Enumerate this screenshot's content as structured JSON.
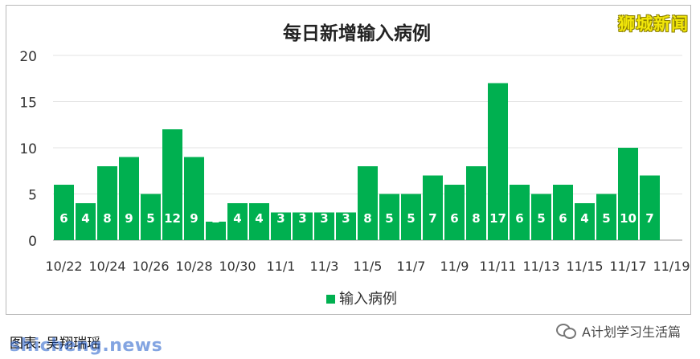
{
  "brand": {
    "text": "狮城新闻"
  },
  "footer": {
    "caption": "图表: 吴翔瑞瑶",
    "watermark": "shicheng.news",
    "wechat_account": "A计划学习生活篇"
  },
  "chart_data": {
    "type": "bar",
    "title": "每日新增输入病例",
    "xlabel": "",
    "ylabel": "",
    "ylim": [
      0,
      20
    ],
    "yticks": [
      0,
      5,
      10,
      15,
      20
    ],
    "grid": true,
    "legend": {
      "position": "bottom",
      "label": "输入病例"
    },
    "categories": [
      "10/22",
      "10/23",
      "10/24",
      "10/25",
      "10/26",
      "10/27",
      "10/28",
      "10/29",
      "10/30",
      "10/31",
      "11/1",
      "11/2",
      "11/3",
      "11/4",
      "11/5",
      "11/6",
      "11/7",
      "11/8",
      "11/9",
      "11/10",
      "11/11",
      "11/12",
      "11/13",
      "11/14",
      "11/15",
      "11/16",
      "11/17",
      "11/18",
      "11/19"
    ],
    "tick_labels": [
      "10/22",
      "10/24",
      "10/26",
      "10/28",
      "10/30",
      "11/1",
      "11/3",
      "11/5",
      "11/7",
      "11/9",
      "11/11",
      "11/13",
      "11/15",
      "11/17",
      "11/19"
    ],
    "series": [
      {
        "name": "输入病例",
        "color": "#00b050",
        "values": [
          6,
          4,
          8,
          9,
          5,
          12,
          9,
          2,
          4,
          4,
          3,
          3,
          3,
          3,
          8,
          5,
          5,
          7,
          6,
          8,
          17,
          6,
          5,
          6,
          4,
          5,
          10,
          7,
          null
        ]
      }
    ]
  }
}
